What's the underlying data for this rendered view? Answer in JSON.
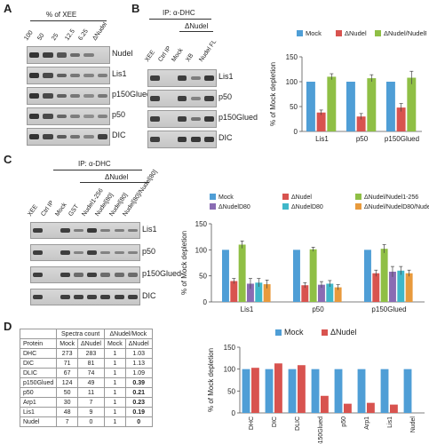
{
  "panels": {
    "A": {
      "letter": "A",
      "header": "% of XEE",
      "lanes": [
        "100",
        "50",
        "25",
        "12.5",
        "6.25",
        "ΔNudel"
      ],
      "rows": [
        "Nudel",
        "Lis1",
        "p150Glued",
        "p50",
        "DIC"
      ]
    },
    "B": {
      "letter": "B",
      "header": "IP: α-DHC",
      "group": "ΔNudel",
      "lanes": [
        "XEE",
        "Ctrl IP",
        "Mock",
        "XB",
        "Nudel FL"
      ],
      "rows": [
        "Lis1",
        "p50",
        "p150Glued",
        "DIC"
      ]
    },
    "C": {
      "letter": "C",
      "header": "IP: α-DHC",
      "group": "ΔNudel",
      "lanes": [
        "XEE",
        "Ctrl IP",
        "Mock",
        "GST",
        "Nudel1-256",
        "Nudel[80]",
        "Nudel[80]",
        "Nudel[80]/Nudel[80]"
      ],
      "rows": [
        "Lis1",
        "p50",
        "p150Glued",
        "DIC"
      ]
    },
    "D": {
      "letter": "D"
    }
  },
  "table_D": {
    "head1": [
      "",
      "Spectra count",
      "",
      "ΔNudel/Mock",
      ""
    ],
    "head2": [
      "Protein",
      "Mock",
      "ΔNudel",
      "Mock",
      "ΔNudel"
    ],
    "rows": [
      [
        "DHC",
        "273",
        "283",
        "1",
        "1.03"
      ],
      [
        "DIC",
        "71",
        "81",
        "1",
        "1.13"
      ],
      [
        "DLIC",
        "67",
        "74",
        "1",
        "1.09"
      ],
      [
        "p150Glued",
        "124",
        "49",
        "1",
        "0.39"
      ],
      [
        "p50",
        "50",
        "11",
        "1",
        "0.21"
      ],
      [
        "Arp1",
        "30",
        "7",
        "1",
        "0.23"
      ],
      [
        "Lis1",
        "48",
        "9",
        "1",
        "0.19"
      ],
      [
        "Nudel",
        "7",
        "0",
        "1",
        "0"
      ]
    ]
  },
  "chart_data": [
    {
      "id": "B",
      "type": "bar",
      "ylabel": "% of Mock depletion",
      "ylim": [
        0,
        150
      ],
      "yticks": [
        0,
        50,
        100,
        150
      ],
      "categories": [
        "Lis1",
        "p50",
        "p150Glued"
      ],
      "legend_position": "top",
      "series": [
        {
          "name": "Mock",
          "color": "#4f9ed6",
          "values": [
            100,
            100,
            100
          ],
          "errors": [
            0,
            0,
            0
          ]
        },
        {
          "name": "ΔNudel",
          "color": "#d8534f",
          "values": [
            38,
            30,
            48
          ],
          "errors": [
            5,
            6,
            8
          ]
        },
        {
          "name": "ΔNudel/NudelFL",
          "color": "#8fbf45",
          "values": [
            110,
            107,
            108
          ],
          "errors": [
            6,
            7,
            13
          ]
        }
      ]
    },
    {
      "id": "C",
      "type": "bar",
      "ylabel": "% of Mock depletion",
      "ylim": [
        0,
        150
      ],
      "yticks": [
        0,
        50,
        100,
        150
      ],
      "categories": [
        "Lis1",
        "p50",
        "p150Glued"
      ],
      "legend_position": "top",
      "series": [
        {
          "name": "Mock",
          "color": "#4f9ed6",
          "values": [
            100,
            100,
            100
          ],
          "errors": [
            0,
            0,
            0
          ]
        },
        {
          "name": "ΔNudel",
          "color": "#d8534f",
          "values": [
            40,
            32,
            55
          ],
          "errors": [
            5,
            5,
            6
          ]
        },
        {
          "name": "ΔNudel/Nudel1-256",
          "color": "#8fbf45",
          "values": [
            110,
            101,
            102
          ],
          "errors": [
            7,
            4,
            8
          ]
        },
        {
          "name": "ΔNudelD80",
          "color": "#8a6cb3",
          "values": [
            35,
            33,
            58
          ],
          "errors": [
            10,
            6,
            10
          ]
        },
        {
          "name": "ΔNudelD80",
          "color": "#3fb7c9",
          "values": [
            37,
            35,
            60
          ],
          "errors": [
            8,
            6,
            8
          ]
        },
        {
          "name": "ΔNudel/NudelD80/NudelE80",
          "color": "#e89a3c",
          "values": [
            34,
            28,
            55
          ],
          "errors": [
            8,
            5,
            6
          ]
        }
      ]
    },
    {
      "id": "D",
      "type": "bar",
      "ylabel": "% of Mock depletion",
      "ylim": [
        0,
        150
      ],
      "yticks": [
        0,
        50,
        100,
        150
      ],
      "categories": [
        "DHC",
        "DIC",
        "DLIC",
        "p150Glued",
        "p50",
        "Arp1",
        "Lis1",
        "Nudel"
      ],
      "legend_position": "top",
      "series": [
        {
          "name": "Mock",
          "color": "#4f9ed6",
          "values": [
            100,
            100,
            100,
            100,
            100,
            100,
            100,
            100
          ]
        },
        {
          "name": "ΔNudel",
          "color": "#d8534f",
          "values": [
            103,
            113,
            109,
            39,
            21,
            23,
            19,
            0
          ]
        }
      ]
    }
  ]
}
